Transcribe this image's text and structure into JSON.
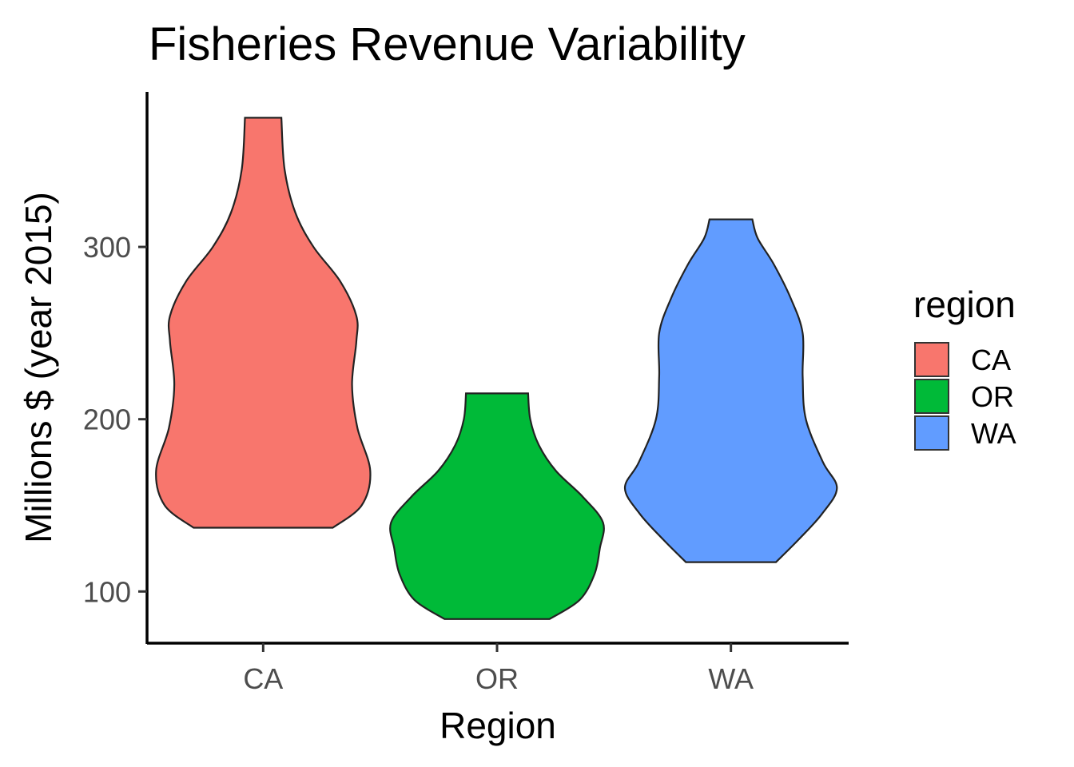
{
  "chart_data": {
    "type": "violin",
    "title": "Fisheries Revenue Variability",
    "xlabel": "Region",
    "ylabel": "Millions $ (year 2015)",
    "categories": [
      "CA",
      "OR",
      "WA"
    ],
    "yticks": [
      100,
      200,
      300
    ],
    "ylim": [
      70,
      390
    ],
    "grid": false,
    "legend": {
      "title": "region",
      "position": "right",
      "entries": [
        "CA",
        "OR",
        "WA"
      ]
    },
    "colors": {
      "CA": "#F8766D",
      "OR": "#00BA38",
      "WA": "#619CFF"
    },
    "series": [
      {
        "name": "CA",
        "min": 137,
        "max": 375,
        "density_profile": [
          {
            "y": 137,
            "w": 0.65
          },
          {
            "y": 150,
            "w": 0.92
          },
          {
            "y": 170,
            "w": 1.0
          },
          {
            "y": 195,
            "w": 0.88
          },
          {
            "y": 220,
            "w": 0.83
          },
          {
            "y": 245,
            "w": 0.87
          },
          {
            "y": 260,
            "w": 0.87
          },
          {
            "y": 280,
            "w": 0.72
          },
          {
            "y": 300,
            "w": 0.47
          },
          {
            "y": 320,
            "w": 0.3
          },
          {
            "y": 345,
            "w": 0.2
          },
          {
            "y": 375,
            "w": 0.17
          }
        ]
      },
      {
        "name": "OR",
        "min": 84,
        "max": 215,
        "density_profile": [
          {
            "y": 84,
            "w": 0.49
          },
          {
            "y": 95,
            "w": 0.77
          },
          {
            "y": 110,
            "w": 0.91
          },
          {
            "y": 125,
            "w": 0.96
          },
          {
            "y": 140,
            "w": 0.99
          },
          {
            "y": 155,
            "w": 0.8
          },
          {
            "y": 170,
            "w": 0.55
          },
          {
            "y": 185,
            "w": 0.39
          },
          {
            "y": 200,
            "w": 0.31
          },
          {
            "y": 215,
            "w": 0.29
          }
        ]
      },
      {
        "name": "WA",
        "min": 117,
        "max": 316,
        "density_profile": [
          {
            "y": 117,
            "w": 0.42
          },
          {
            "y": 130,
            "w": 0.63
          },
          {
            "y": 145,
            "w": 0.85
          },
          {
            "y": 160,
            "w": 0.99
          },
          {
            "y": 175,
            "w": 0.86
          },
          {
            "y": 200,
            "w": 0.7
          },
          {
            "y": 225,
            "w": 0.67
          },
          {
            "y": 250,
            "w": 0.67
          },
          {
            "y": 270,
            "w": 0.56
          },
          {
            "y": 290,
            "w": 0.4
          },
          {
            "y": 305,
            "w": 0.25
          },
          {
            "y": 316,
            "w": 0.2
          }
        ]
      }
    ]
  }
}
